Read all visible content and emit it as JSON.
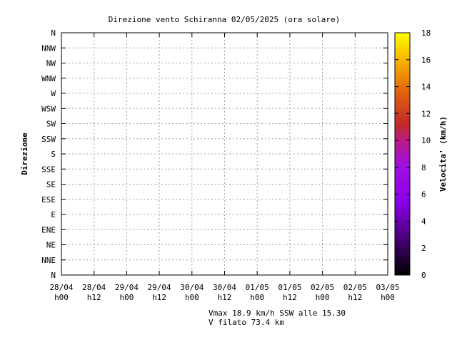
{
  "chart_data": {
    "type": "scatter",
    "title": "Direzione vento Schiranna 02/05/2025 (ora solare)",
    "ylabel": "Direzione",
    "colorbar_label": "Velocita' (km/h)",
    "colorbar_ticks": [
      "0",
      "2",
      "4",
      "6",
      "8",
      "10",
      "12",
      "14",
      "16",
      "18"
    ],
    "color_range": [
      0,
      18
    ],
    "x_ticks": [
      {
        "l1": "28/04",
        "l2": "h00"
      },
      {
        "l1": "28/04",
        "l2": "h12"
      },
      {
        "l1": "29/04",
        "l2": "h00"
      },
      {
        "l1": "29/04",
        "l2": "h12"
      },
      {
        "l1": "30/04",
        "l2": "h00"
      },
      {
        "l1": "30/04",
        "l2": "h12"
      },
      {
        "l1": "01/05",
        "l2": "h00"
      },
      {
        "l1": "01/05",
        "l2": "h12"
      },
      {
        "l1": "02/05",
        "l2": "h00"
      },
      {
        "l1": "02/05",
        "l2": "h12"
      },
      {
        "l1": "03/05",
        "l2": "h00"
      }
    ],
    "xlim_hours": [
      0,
      120
    ],
    "y_categories": [
      "N",
      "NNE",
      "NE",
      "ENE",
      "E",
      "ESE",
      "SE",
      "SSE",
      "S",
      "SSW",
      "SW",
      "WSW",
      "W",
      "WNW",
      "NW",
      "NNW",
      "N"
    ],
    "ylim_index": [
      0,
      16
    ],
    "grid": true,
    "legend": "colorbar right"
  },
  "footer": {
    "vmax": "Vmax 18.9 km/h SSW alle 15.30",
    "vfilato": "V filato 73.4 km"
  }
}
